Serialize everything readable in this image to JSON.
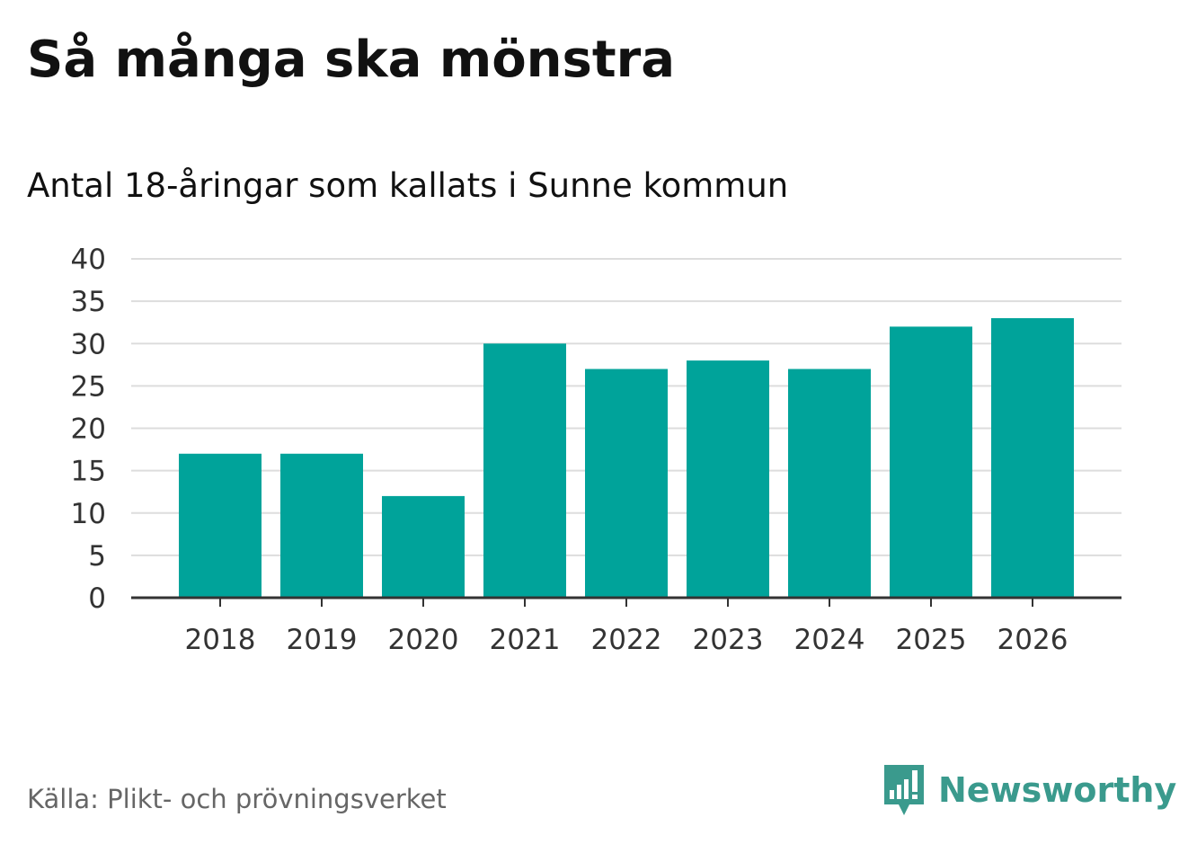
{
  "title": "Så många ska mönstra",
  "subtitle": "Antal 18-åringar som kallats i Sunne kommun",
  "source": "Källa: Plikt- och prövningsverket",
  "brand": {
    "name": "Newsworthy",
    "icon": "newsworthy-logo-icon",
    "color": "#3a9a8d"
  },
  "colors": {
    "bar": "#00a39a",
    "grid": "#dddddd",
    "axis": "#333333"
  },
  "chart_data": {
    "type": "bar",
    "title": "Så många ska mönstra",
    "subtitle": "Antal 18-åringar som kallats i Sunne kommun",
    "xlabel": "",
    "ylabel": "",
    "categories": [
      "2018",
      "2019",
      "2020",
      "2021",
      "2022",
      "2023",
      "2024",
      "2025",
      "2026"
    ],
    "values": [
      17,
      17,
      12,
      30,
      27,
      28,
      27,
      32,
      33
    ],
    "ylim": [
      0,
      40
    ],
    "yticks": [
      0,
      5,
      10,
      15,
      20,
      25,
      30,
      35,
      40
    ],
    "grid": true
  }
}
